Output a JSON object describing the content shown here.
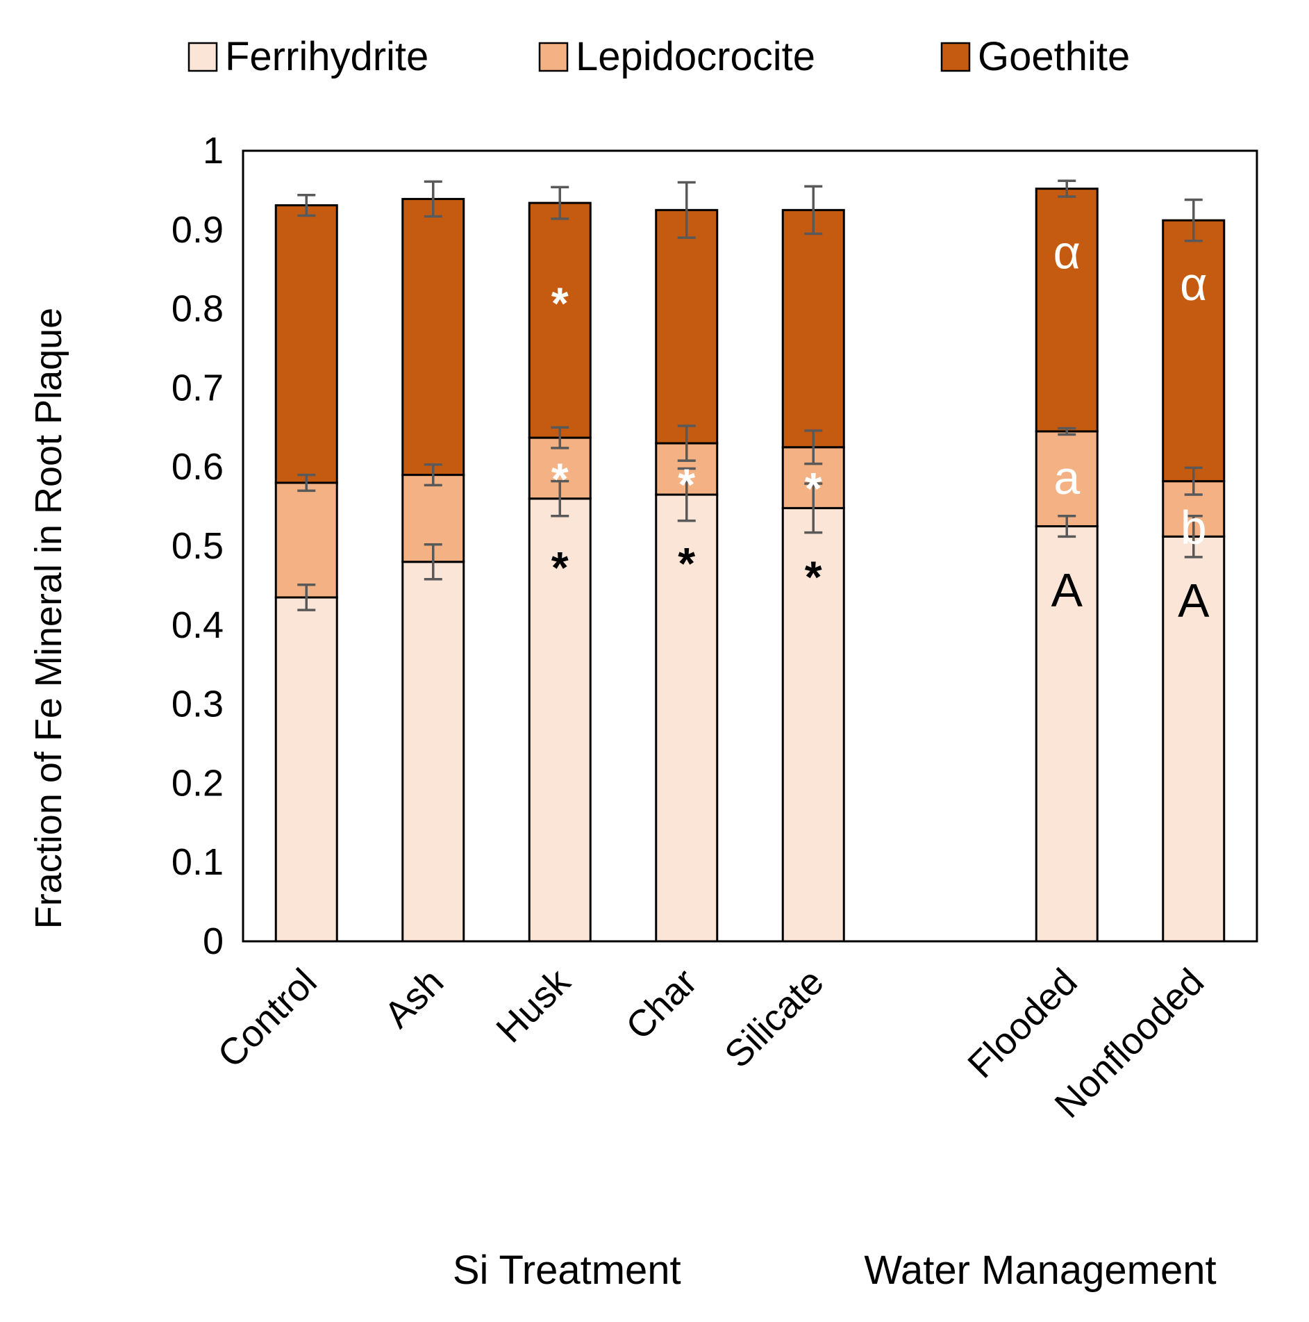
{
  "chart_data": {
    "type": "bar",
    "stacked": true,
    "title": "",
    "ylabel": "Fraction of Fe Mineral in Root Plaque",
    "ylim": [
      0,
      1
    ],
    "yticks": [
      0,
      0.1,
      0.2,
      0.3,
      0.4,
      0.5,
      0.6,
      0.7,
      0.8,
      0.9,
      1
    ],
    "ytick_labels": [
      "0",
      "0.1",
      "0.2",
      "0.3",
      "0.4",
      "0.5",
      "0.6",
      "0.7",
      "0.8",
      "0.9",
      "1"
    ],
    "grid": false,
    "legend_position": "top",
    "categories": [
      "Control",
      "Ash",
      "Husk",
      "Char",
      "Silicate",
      "",
      "Flooded",
      "Nonflooded"
    ],
    "group_labels": [
      {
        "label": "Si Treatment",
        "categories": [
          "Control",
          "Ash",
          "Husk",
          "Char",
          "Silicate"
        ]
      },
      {
        "label": "Water Management",
        "categories": [
          "Flooded",
          "Nonflooded"
        ]
      }
    ],
    "series": [
      {
        "name": "Ferrihydrite",
        "color": "#fbe5d6",
        "values": [
          0.435,
          0.48,
          0.56,
          0.565,
          0.548,
          null,
          0.525,
          0.512
        ],
        "errors": [
          0.016,
          0.022,
          0.022,
          0.033,
          0.031,
          null,
          0.013,
          0.026
        ]
      },
      {
        "name": "Lepidocrocite",
        "color": "#f4b183",
        "values": [
          0.145,
          0.11,
          0.077,
          0.065,
          0.077,
          null,
          0.12,
          0.07
        ],
        "errors": [
          0.01,
          0.013,
          0.013,
          0.022,
          0.021,
          null,
          0.004,
          0.017
        ]
      },
      {
        "name": "Goethite",
        "color": "#c55a11",
        "values": [
          0.351,
          0.349,
          0.297,
          0.295,
          0.3,
          null,
          0.307,
          0.33
        ],
        "errors": [
          0.013,
          0.022,
          0.02,
          0.035,
          0.03,
          null,
          0.01,
          0.026
        ]
      }
    ],
    "annotations": [
      {
        "category": "Husk",
        "series": "Ferrihydrite",
        "text": "*",
        "color": "#000000"
      },
      {
        "category": "Char",
        "series": "Ferrihydrite",
        "text": "*",
        "color": "#000000"
      },
      {
        "category": "Silicate",
        "series": "Ferrihydrite",
        "text": "*",
        "color": "#000000"
      },
      {
        "category": "Husk",
        "series": "Lepidocrocite",
        "text": "*",
        "color": "#ffffff"
      },
      {
        "category": "Char",
        "series": "Lepidocrocite",
        "text": "*",
        "color": "#ffffff"
      },
      {
        "category": "Silicate",
        "series": "Lepidocrocite",
        "text": "*",
        "color": "#ffffff"
      },
      {
        "category": "Husk",
        "series": "Goethite",
        "text": "*",
        "color": "#ffffff"
      },
      {
        "category": "Flooded",
        "series": "Ferrihydrite",
        "text": "A",
        "color": "#000000"
      },
      {
        "category": "Nonflooded",
        "series": "Ferrihydrite",
        "text": "A",
        "color": "#000000"
      },
      {
        "category": "Flooded",
        "series": "Lepidocrocite",
        "text": "a",
        "color": "#ffffff"
      },
      {
        "category": "Nonflooded",
        "series": "Lepidocrocite",
        "text": "b",
        "color": "#ffffff"
      },
      {
        "category": "Flooded",
        "series": "Goethite",
        "text": "α",
        "color": "#ffffff"
      },
      {
        "category": "Nonflooded",
        "series": "Goethite",
        "text": "α",
        "color": "#ffffff"
      }
    ]
  }
}
